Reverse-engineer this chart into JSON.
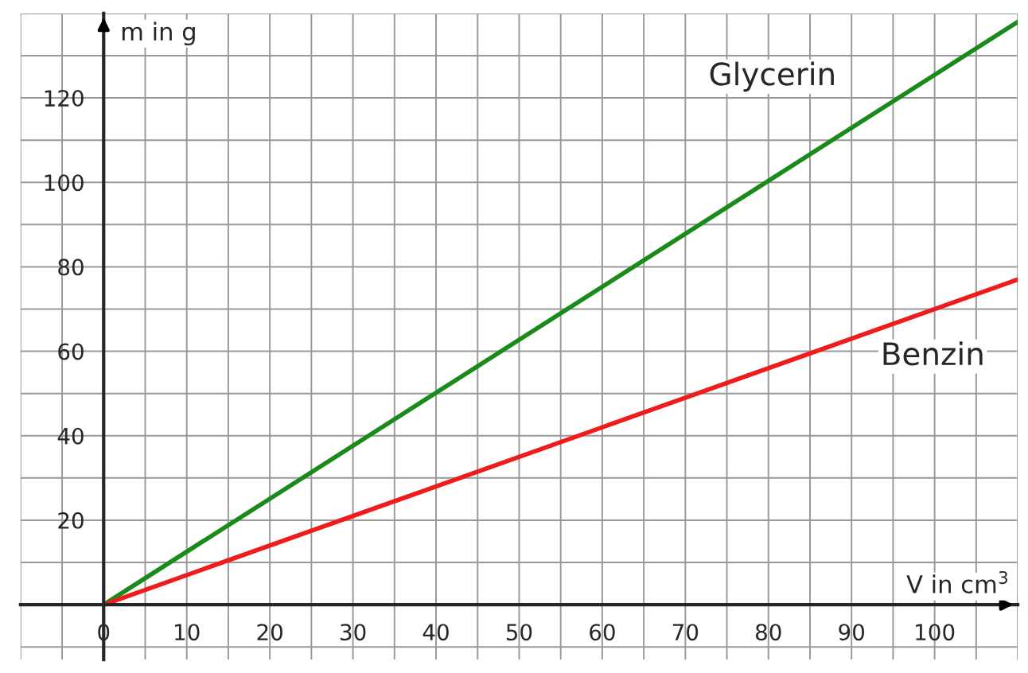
{
  "chart_data": {
    "type": "line",
    "xlabel": "V in cm$^{3}$",
    "ylabel": "m in g",
    "x": [
      0,
      110
    ],
    "series": [
      {
        "name": "Glycerin",
        "color": "#1a8a1a",
        "values": [
          0,
          138
        ]
      },
      {
        "name": "Benzin",
        "color": "#ee1c1c",
        "values": [
          0,
          77
        ]
      }
    ],
    "xlim": [
      -10,
      110
    ],
    "ylim": [
      -13,
      140
    ],
    "xticks": [
      0,
      10,
      20,
      30,
      40,
      50,
      60,
      70,
      80,
      90,
      100
    ],
    "yticks": [
      20,
      40,
      60,
      80,
      100,
      120
    ],
    "grid": true,
    "marker": "none",
    "line_style": "solid",
    "legend": false
  }
}
